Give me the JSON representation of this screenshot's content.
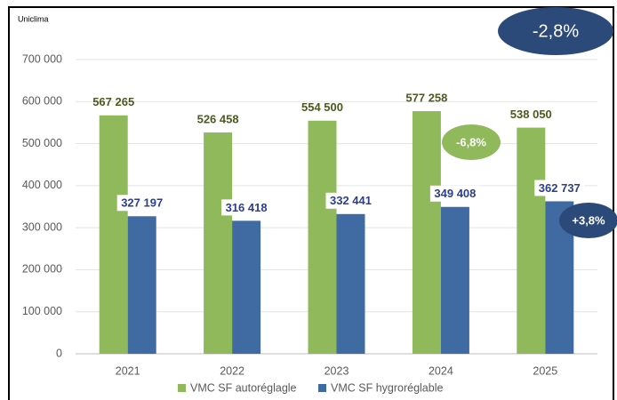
{
  "chart_data": {
    "type": "bar",
    "source": "Uniclima",
    "categories": [
      "2021",
      "2022",
      "2023",
      "2024",
      "2025"
    ],
    "series": [
      {
        "name": "VMC SF autoréglagle",
        "color": "#8fb95b",
        "values": [
          567265,
          526458,
          554500,
          577258,
          538050
        ],
        "value_labels": [
          "567 265",
          "526 458",
          "554 500",
          "577 258",
          "538 050"
        ]
      },
      {
        "name": "VMC SF hygroréglable",
        "color": "#3f6aa2",
        "values": [
          327197,
          316418,
          332441,
          349408,
          362737
        ],
        "value_labels": [
          "327 197",
          "316 418",
          "332 441",
          "349 408",
          "362 737"
        ]
      }
    ],
    "ylim": [
      0,
      700000
    ],
    "yticks": [
      0,
      {
        "value": 100000,
        "label": "100 000"
      },
      {
        "value": 200000,
        "label": "200 000"
      },
      {
        "value": 300000,
        "label": "300 000"
      },
      {
        "value": 400000,
        "label": "400 000"
      },
      {
        "value": 500000,
        "label": "500 000"
      },
      {
        "value": 600000,
        "label": "600 000"
      },
      {
        "value": 700000,
        "label": "700 000"
      }
    ],
    "grid": true,
    "annotations": [
      "-2,8%",
      "-6,8%",
      "+3,8%"
    ]
  }
}
